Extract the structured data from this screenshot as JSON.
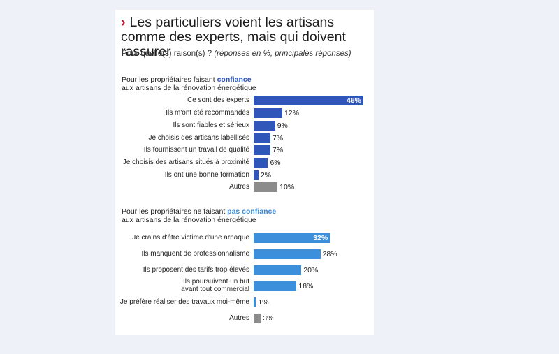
{
  "title": "Les particuliers voient les artisans comme des experts, mais qui doivent rassurer",
  "subtitle_main": "Pour quelle(s) raison(s) ? ",
  "subtitle_note": "(réponses en %, principales réponses)",
  "colors": {
    "trust": "#2f56b8",
    "distrust": "#3b8fdb",
    "other": "#8c8c8c",
    "accent": "#c8102e"
  },
  "chart_data": [
    {
      "type": "bar",
      "orientation": "horizontal",
      "header_prefix": "Pour les propriétaires faisant ",
      "header_highlight": "confiance",
      "header_suffix": "aux artisans de la rénovation énergétique",
      "categories": [
        "Ce sont des experts",
        "Ils m'ont été recommandés",
        "Ils sont fiables et sérieux",
        "Je choisis des artisans labellisés",
        "Ils fournissent un travail de qualité",
        "Je choisis des artisans situés à proximité",
        "Ils ont une bonne formation",
        "Autres"
      ],
      "values": [
        46,
        12,
        9,
        7,
        7,
        6,
        2,
        10
      ],
      "value_labels": [
        "46%",
        "12%",
        "9%",
        "7%",
        "7%",
        "6%",
        "2%",
        "10%"
      ],
      "unit": "%"
    },
    {
      "type": "bar",
      "orientation": "horizontal",
      "header_prefix": "Pour les propriétaires ne faisant ",
      "header_highlight": "pas confiance",
      "header_suffix": "aux artisans de la rénovation énergétique",
      "categories": [
        "Je crains d'être victime d'une arnaque",
        "Ils manquent de professionnalisme",
        "Ils proposent des tarifs trop élevés",
        "Ils poursuivent un but avant tout commercial",
        "Je préfère réaliser des travaux moi-même",
        "Autres"
      ],
      "values": [
        32,
        28,
        20,
        18,
        1,
        3
      ],
      "value_labels": [
        "32%",
        "28%",
        "20%",
        "18%",
        "1%",
        "3%"
      ],
      "unit": "%"
    }
  ]
}
